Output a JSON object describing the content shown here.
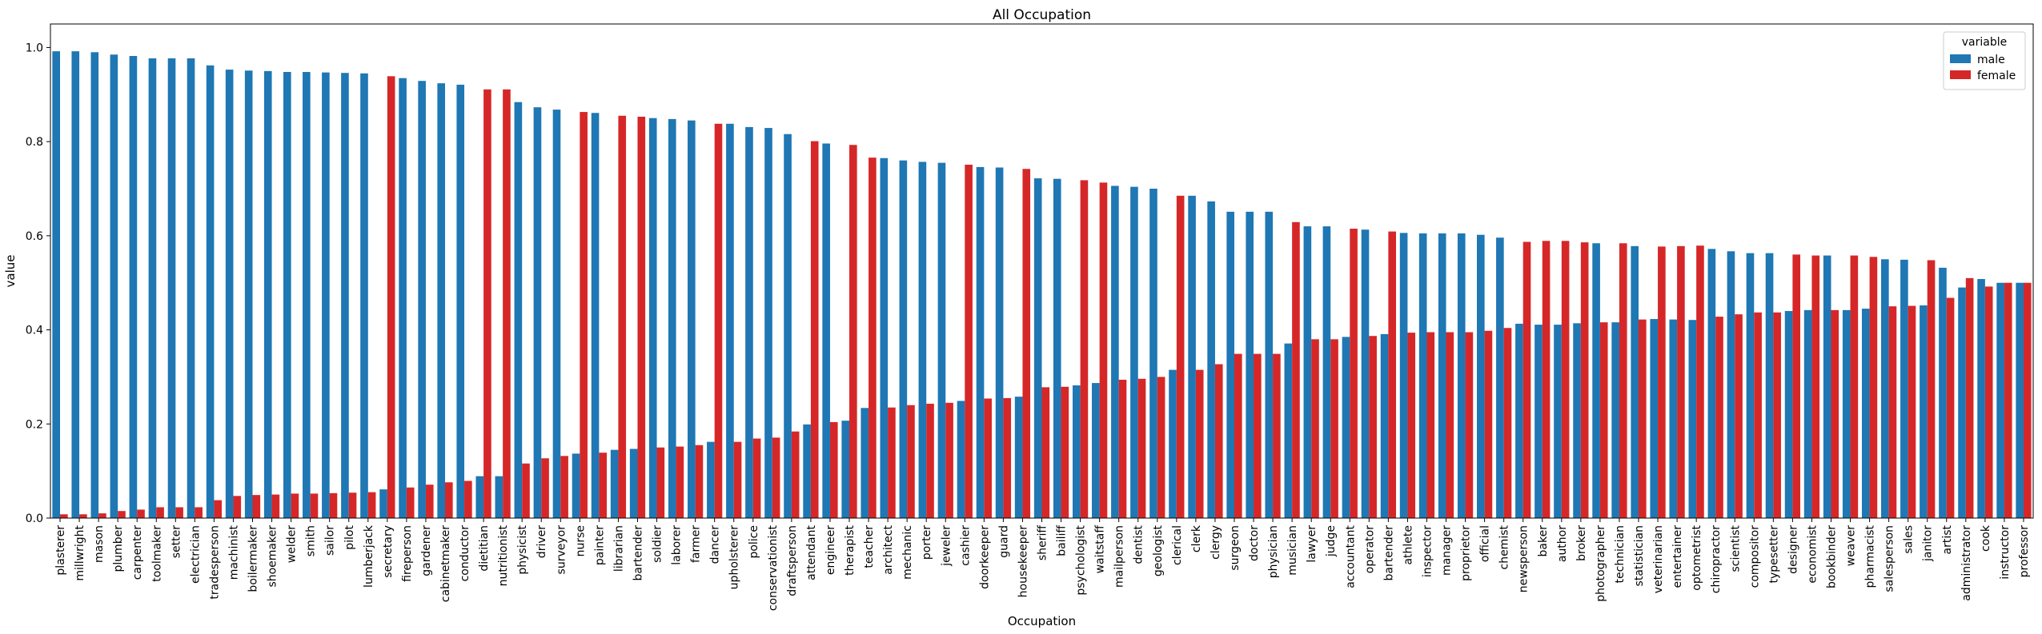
{
  "chart_data": {
    "type": "bar",
    "title": "All Occupation",
    "xlabel": "Occupation",
    "ylabel": "value",
    "ylim": [
      0,
      1.05
    ],
    "yticks": [
      0.0,
      0.2,
      0.4,
      0.6,
      0.8,
      1.0
    ],
    "ytick_labels": [
      "0.0",
      "0.2",
      "0.4",
      "0.6",
      "0.8",
      "1.0"
    ],
    "grid": false,
    "legend": {
      "title": "variable",
      "placement": "top-right"
    },
    "categories": [
      "plasterer",
      "millwright",
      "mason",
      "plumber",
      "carpenter",
      "toolmaker",
      "setter",
      "electrician",
      "tradesperson",
      "machinist",
      "boilermaker",
      "shoemaker",
      "welder",
      "smith",
      "sailor",
      "pilot",
      "lumberjack",
      "secretary",
      "fireperson",
      "gardener",
      "cabinetmaker",
      "conductor",
      "dietitian",
      "nutritionist",
      "physicist",
      "driver",
      "surveyor",
      "nurse",
      "painter",
      "librarian",
      "bartender",
      "soldier",
      "laborer",
      "farmer",
      "dancer",
      "upholsterer",
      "police",
      "conservationist",
      "draftsperson",
      "attendant",
      "engineer",
      "therapist",
      "teacher",
      "architect",
      "mechanic",
      "porter",
      "jeweler",
      "cashier",
      "doorkeeper",
      "guard",
      "housekeeper",
      "sheriff",
      "bailiff",
      "psychologist",
      "waitstaff",
      "mailperson",
      "dentist",
      "geologist",
      "clerical",
      "clerk",
      "clergy",
      "surgeon",
      "doctor",
      "physician",
      "musician",
      "lawyer",
      "judge",
      "accountant",
      "operator",
      "bartender",
      "athlete",
      "inspector",
      "manager",
      "proprietor",
      "official",
      "chemist",
      "newsperson",
      "baker",
      "author",
      "broker",
      "photographer",
      "technician",
      "statistician",
      "veterinarian",
      "entertainer",
      "optometrist",
      "chiropractor",
      "scientist",
      "compositor",
      "typesetter",
      "designer",
      "economist",
      "bookbinder",
      "weaver",
      "pharmacist",
      "salesperson",
      "sales",
      "janitor",
      "artist",
      "administrator",
      "cook",
      "instructor",
      "professor"
    ],
    "series": [
      {
        "name": "male",
        "color": "#1f77b4",
        "values": [
          0.992,
          0.992,
          0.99,
          0.985,
          0.982,
          0.977,
          0.977,
          0.977,
          0.962,
          0.953,
          0.951,
          0.95,
          0.948,
          0.948,
          0.947,
          0.946,
          0.945,
          0.061,
          0.935,
          0.929,
          0.924,
          0.921,
          0.089,
          0.089,
          0.884,
          0.873,
          0.868,
          0.137,
          0.861,
          0.145,
          0.147,
          0.85,
          0.848,
          0.845,
          0.162,
          0.838,
          0.831,
          0.829,
          0.816,
          0.199,
          0.796,
          0.207,
          0.234,
          0.765,
          0.76,
          0.757,
          0.755,
          0.249,
          0.746,
          0.745,
          0.258,
          0.722,
          0.721,
          0.282,
          0.287,
          0.706,
          0.704,
          0.7,
          0.315,
          0.685,
          0.673,
          0.651,
          0.651,
          0.651,
          0.371,
          0.62,
          0.62,
          0.385,
          0.613,
          0.391,
          0.606,
          0.605,
          0.605,
          0.605,
          0.602,
          0.596,
          0.413,
          0.411,
          0.411,
          0.414,
          0.584,
          0.416,
          0.578,
          0.423,
          0.422,
          0.421,
          0.572,
          0.567,
          0.563,
          0.563,
          0.44,
          0.442,
          0.558,
          0.442,
          0.445,
          0.55,
          0.549,
          0.452,
          0.532,
          0.49,
          0.508,
          0.5,
          0.5
        ]
      },
      {
        "name": "female",
        "color": "#d62728",
        "values": [
          0.008,
          0.008,
          0.01,
          0.015,
          0.018,
          0.023,
          0.023,
          0.023,
          0.038,
          0.047,
          0.049,
          0.05,
          0.052,
          0.052,
          0.053,
          0.054,
          0.055,
          0.939,
          0.065,
          0.071,
          0.076,
          0.079,
          0.911,
          0.911,
          0.116,
          0.127,
          0.132,
          0.863,
          0.139,
          0.855,
          0.853,
          0.15,
          0.152,
          0.155,
          0.838,
          0.162,
          0.169,
          0.171,
          0.184,
          0.801,
          0.204,
          0.793,
          0.766,
          0.235,
          0.24,
          0.243,
          0.245,
          0.751,
          0.254,
          0.255,
          0.742,
          0.278,
          0.279,
          0.718,
          0.713,
          0.294,
          0.296,
          0.3,
          0.685,
          0.315,
          0.327,
          0.349,
          0.349,
          0.349,
          0.629,
          0.38,
          0.38,
          0.615,
          0.387,
          0.609,
          0.394,
          0.395,
          0.395,
          0.395,
          0.398,
          0.404,
          0.587,
          0.589,
          0.589,
          0.586,
          0.416,
          0.584,
          0.422,
          0.577,
          0.578,
          0.579,
          0.428,
          0.433,
          0.437,
          0.437,
          0.56,
          0.558,
          0.442,
          0.558,
          0.555,
          0.45,
          0.451,
          0.548,
          0.468,
          0.51,
          0.492,
          0.5,
          0.5
        ]
      }
    ]
  }
}
